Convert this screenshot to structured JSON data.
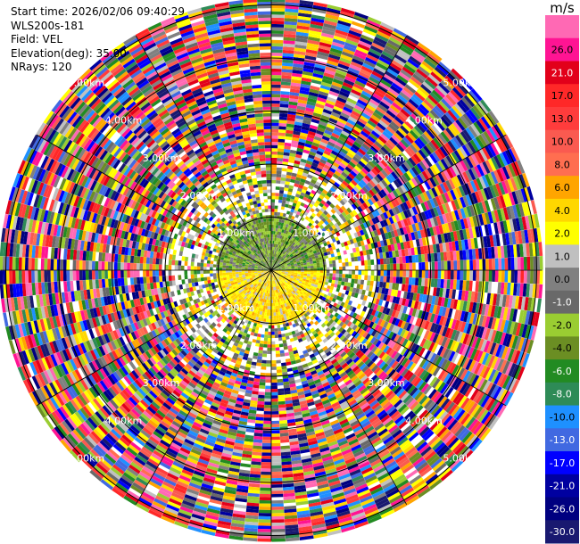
{
  "info": {
    "start_time": "Start time: 2026/02/06 09:40:29",
    "instrument": "WLS200s-181",
    "field": "Field: VEL",
    "elevation": "Elevation(deg): 35.00",
    "nrays": "NRays: 120"
  },
  "colorbar": {
    "unit": "m/s",
    "levels": [
      {
        "label": "",
        "color": "#ff69b4"
      },
      {
        "label": "26.0",
        "color": "#ff1493"
      },
      {
        "label": "21.0",
        "color": "#e2001a"
      },
      {
        "label": "17.0",
        "color": "#ff2828"
      },
      {
        "label": "13.0",
        "color": "#ff3c3c"
      },
      {
        "label": "10.0",
        "color": "#fa5a50"
      },
      {
        "label": "8.0",
        "color": "#ff6e50"
      },
      {
        "label": "6.0",
        "color": "#ffa500"
      },
      {
        "label": "4.0",
        "color": "#ffd700"
      },
      {
        "label": "2.0",
        "color": "#ffff00"
      },
      {
        "label": "1.0",
        "color": "#c0c0c0"
      },
      {
        "label": "0.0",
        "color": "#808080"
      },
      {
        "label": "-1.0",
        "color": "#696969"
      },
      {
        "label": "-2.0",
        "color": "#9acd32"
      },
      {
        "label": "-4.0",
        "color": "#6b8e23"
      },
      {
        "label": "-6.0",
        "color": "#228b22"
      },
      {
        "label": "-8.0",
        "color": "#2e8b57"
      },
      {
        "label": "-10.0",
        "color": "#1e90ff"
      },
      {
        "label": "-13.0",
        "color": "#4169e1"
      },
      {
        "label": "-17.0",
        "color": "#0000ff"
      },
      {
        "label": "-21.0",
        "color": "#0000a0"
      },
      {
        "label": "-26.0",
        "color": "#000080"
      },
      {
        "label": "-30.0",
        "color": "#191970"
      }
    ]
  },
  "chart_data": {
    "type": "heatmap",
    "projection": "polar-ppi",
    "field": "VEL",
    "units": "m/s",
    "nrays": 120,
    "elevation_deg": 35.0,
    "range_rings_km": [
      1.0,
      2.0,
      3.0,
      4.0,
      5.0
    ],
    "ring_labels": [
      "1.00km",
      "2.00km",
      "3.00km",
      "4.00km",
      "5.00km"
    ],
    "max_range_km": 5.1,
    "description_of_pattern": [
      {
        "range_km": [
          0,
          1.0
        ],
        "north_half": "-2 to -6 (green / olive)",
        "south_half": "2 to 6 (yellow / orange)"
      },
      {
        "range_km": [
          1.0,
          2.0
        ],
        "mixed": "yellow, grey and green speckle with gaps"
      },
      {
        "range_km": [
          2.0,
          5.1
        ],
        "mixed": "noise across the full -30 to 30 scale"
      }
    ]
  }
}
